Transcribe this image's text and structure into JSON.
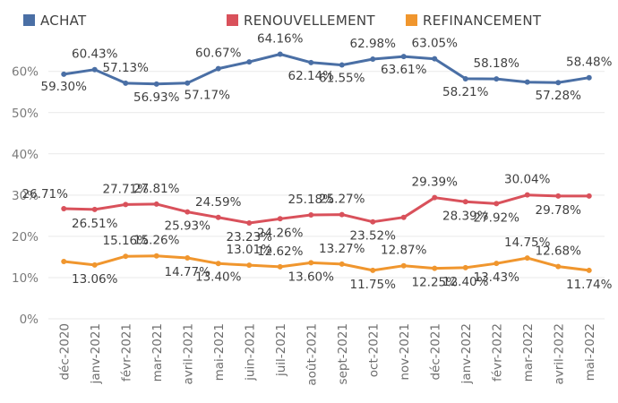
{
  "chart_data": {
    "type": "line",
    "categories": [
      "déc-2020",
      "janv-2021",
      "févr-2021",
      "mar-2021",
      "avril-2021",
      "mai-2021",
      "juin-2021",
      "juil-2021",
      "août-2021",
      "sept-2021",
      "oct-2021",
      "nov-2021",
      "déc-2021",
      "janv-2022",
      "févr-2022",
      "mar-2022",
      "avril-2022",
      "mai-2022"
    ],
    "y_ticks": [
      "0%",
      "10%",
      "20%",
      "30%",
      "40%",
      "50%",
      "60%"
    ],
    "ylim": [
      0,
      66
    ],
    "grid": true,
    "legend_position": "top",
    "series": [
      {
        "name": "ACHAT",
        "color": "#4a6fa5",
        "values": [
          59.3,
          60.43,
          57.13,
          56.93,
          57.17,
          60.67,
          62.3,
          64.16,
          62.14,
          61.55,
          62.98,
          63.61,
          63.05,
          58.21,
          58.18,
          57.4,
          57.28,
          58.48
        ],
        "labels": [
          "59.30%",
          "60.43%",
          "57.13%",
          "56.93%",
          "57.17%",
          "60.67%",
          null,
          "64.16%",
          "62.14%",
          "61.55%",
          "62.98%",
          "63.61%",
          "63.05%",
          "58.21%",
          "58.18%",
          null,
          "57.28%",
          "58.48%"
        ]
      },
      {
        "name": "RENOUVELLEMENT",
        "color": "#d9515b",
        "values": [
          26.71,
          26.51,
          27.71,
          27.81,
          25.93,
          24.59,
          23.23,
          24.26,
          25.18,
          25.27,
          23.52,
          24.6,
          29.39,
          28.39,
          27.92,
          30.04,
          29.78,
          29.78
        ],
        "labels": [
          "26.71%",
          "26.51%",
          "27.71%",
          "27.81%",
          "25.93%",
          "24.59%",
          "23.23%",
          "24.26%",
          "25.18%",
          "25.27%",
          "23.52%",
          null,
          "29.39%",
          "28.39%",
          "27.92%",
          "30.04%",
          "29.78%",
          null
        ]
      },
      {
        "name": "REFINANCEMENT",
        "color": "#f0962e",
        "values": [
          13.9,
          13.06,
          15.16,
          15.26,
          14.77,
          13.4,
          13.01,
          12.62,
          13.6,
          13.27,
          11.75,
          12.87,
          12.25,
          12.4,
          13.43,
          14.75,
          12.68,
          11.74
        ],
        "labels": [
          null,
          "13.06%",
          "15.16%",
          "15.26%",
          "14.77%",
          "13.40%",
          "13.01%",
          "12.62%",
          "13.60%",
          "13.27%",
          "11.75%",
          "12.87%",
          "12.25%",
          "12.40%",
          "13.43%",
          "14.75%",
          "12.68%",
          "11.74%"
        ]
      }
    ]
  }
}
